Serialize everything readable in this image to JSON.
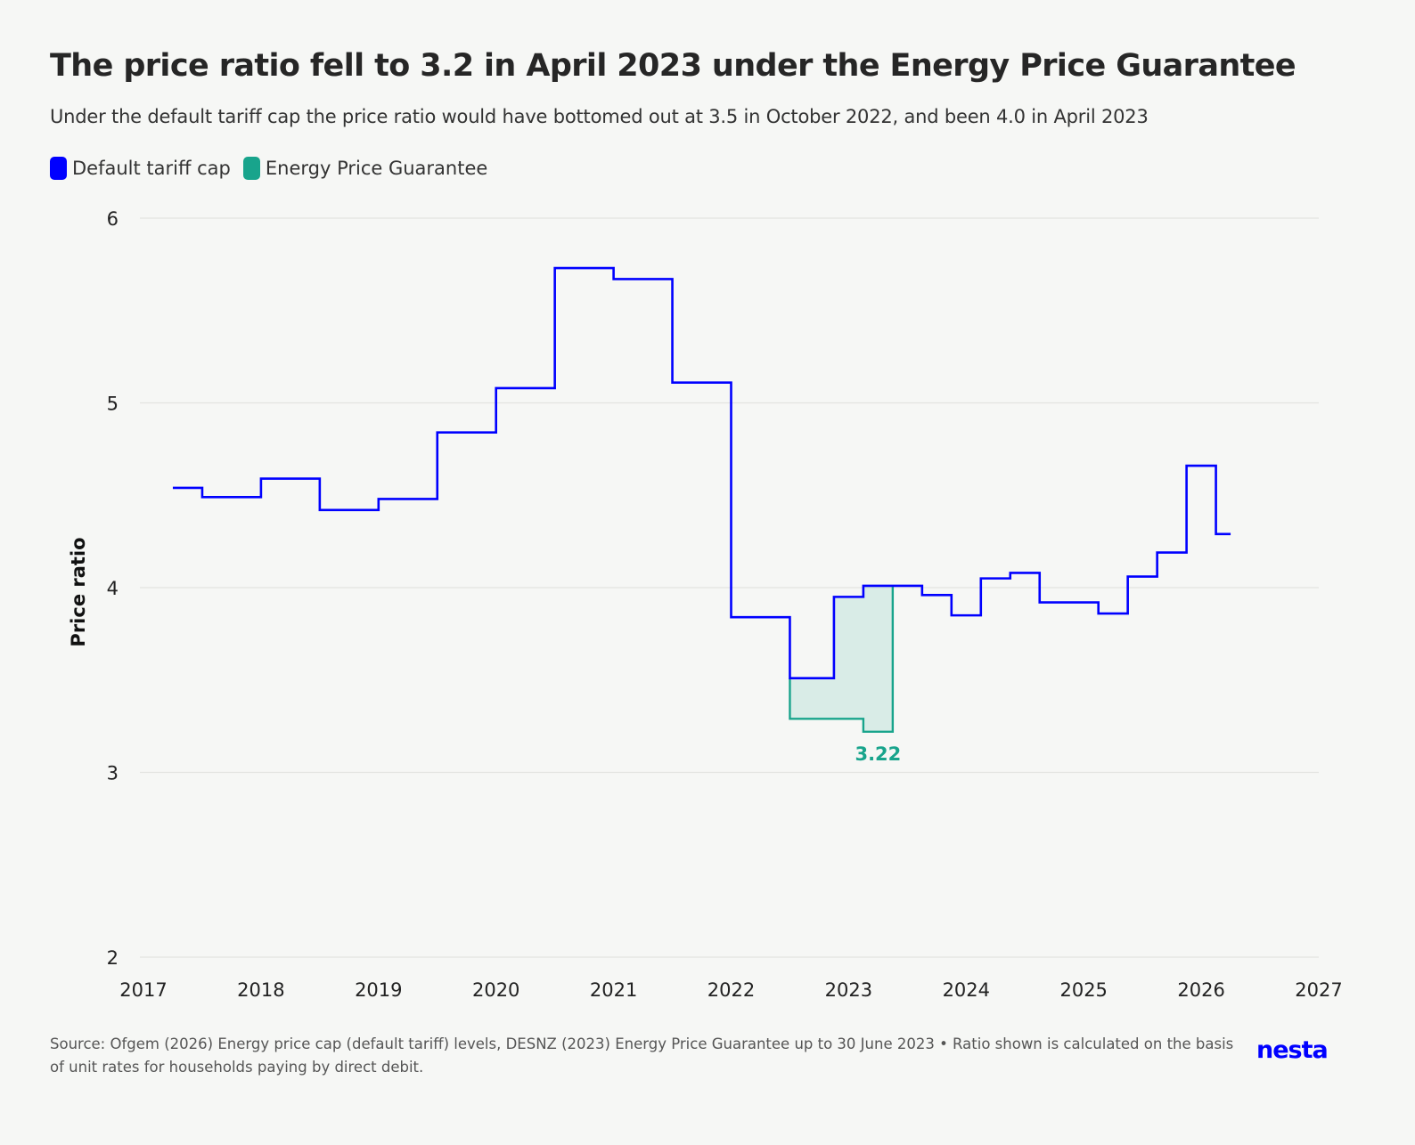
{
  "title": "The price ratio fell to 3.2 in April 2023 under the Energy Price Guarantee",
  "subtitle": "Under the default tariff cap the price ratio would have bottomed out at 3.5 in October 2022, and been 4.0 in April 2023",
  "legend": [
    {
      "label": "Default tariff cap",
      "color": "#0000ff"
    },
    {
      "label": "Energy Price Guarantee",
      "color": "#18a48c"
    }
  ],
  "source": "Source: Ofgem (2026) Energy price cap (default tariff) levels, DESNZ (2023) Energy Price Guarantee up to 30 June 2023 • Ratio shown is calculated on the basis of unit rates for households paying by direct debit.",
  "logo": "nesta",
  "chart_data": {
    "type": "line",
    "step": "after",
    "ylabel": "Price ratio",
    "xlabel": "",
    "xlim": [
      2017,
      2027
    ],
    "ylim": [
      2,
      6
    ],
    "xticks": [
      "2017",
      "2018",
      "2019",
      "2020",
      "2021",
      "2022",
      "2023",
      "2024",
      "2025",
      "2026",
      "2027"
    ],
    "yticks": [
      "2",
      "3",
      "4",
      "5",
      "6"
    ],
    "grid": "horizontal",
    "series": [
      {
        "name": "Default tariff cap",
        "color": "#0000ff",
        "x": [
          2017.25,
          2017.5,
          2018.0,
          2018.5,
          2019.0,
          2019.5,
          2020.0,
          2020.5,
          2021.0,
          2021.5,
          2022.0,
          2022.5,
          2022.875,
          2023.125,
          2023.375,
          2023.625,
          2023.875,
          2024.125,
          2024.375,
          2024.625,
          2024.875,
          2025.125,
          2025.375,
          2025.625,
          2025.875,
          2026.125,
          2026.25
        ],
        "y": [
          4.54,
          4.49,
          4.59,
          4.42,
          4.48,
          4.84,
          5.08,
          5.73,
          5.67,
          5.11,
          3.84,
          3.51,
          3.95,
          4.01,
          4.01,
          3.96,
          3.85,
          4.05,
          4.08,
          3.92,
          3.92,
          3.86,
          4.06,
          4.19,
          4.66,
          4.29,
          4.29
        ]
      },
      {
        "name": "Energy Price Guarantee",
        "color": "#18a48c",
        "x": [
          2022.5,
          2023.125,
          2023.375
        ],
        "y": [
          3.29,
          3.22,
          3.22
        ]
      }
    ],
    "annotations": [
      {
        "text": "3.22",
        "x": 2023.25,
        "y": 3.22,
        "color": "#18a48c"
      }
    ]
  }
}
